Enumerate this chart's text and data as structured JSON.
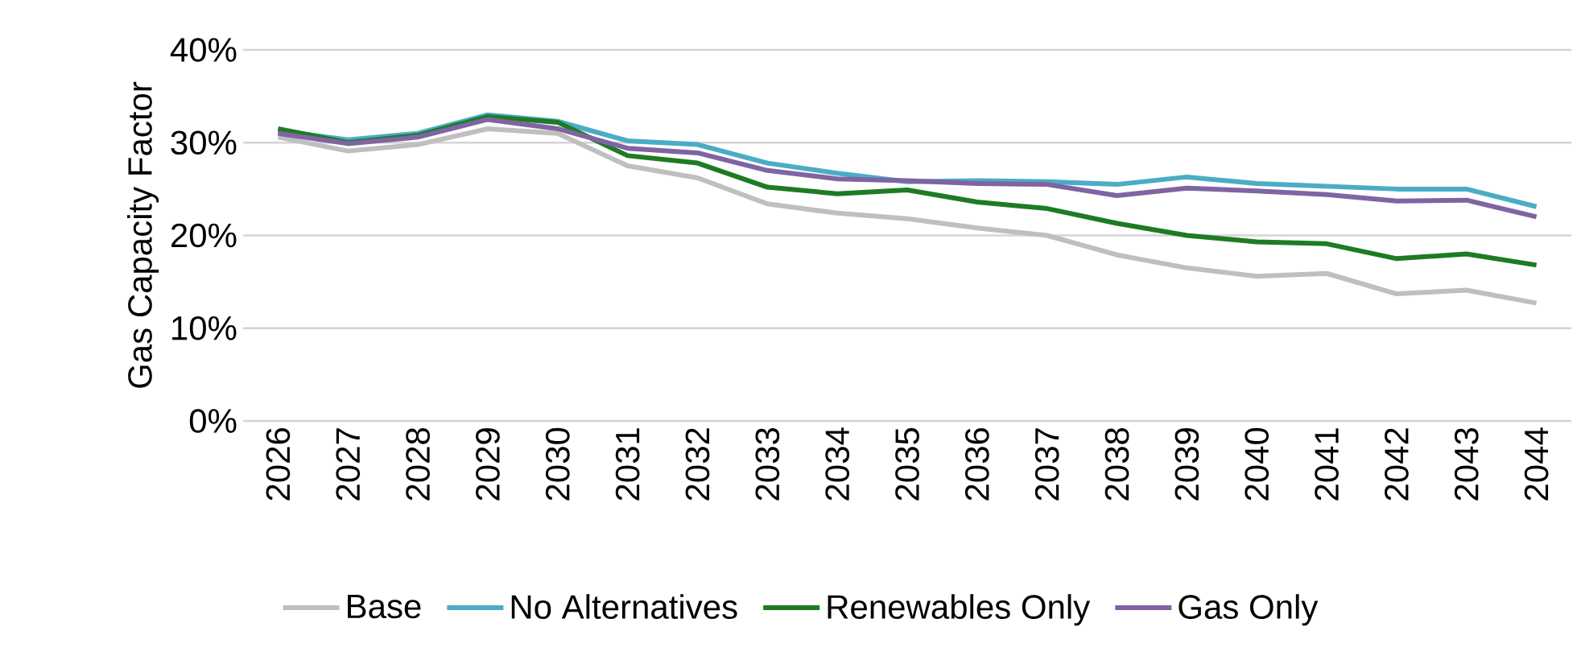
{
  "chart_data": {
    "type": "line",
    "ylabel": "Gas Capacity Factor",
    "categories": [
      "2026",
      "2027",
      "2028",
      "2029",
      "2030",
      "2031",
      "2032",
      "2033",
      "2034",
      "2035",
      "2036",
      "2037",
      "2038",
      "2039",
      "2040",
      "2041",
      "2042",
      "2043",
      "2044"
    ],
    "series": [
      {
        "name": "Base",
        "color": "#bfbfbf",
        "values": [
          30.6,
          29.1,
          29.8,
          31.5,
          31.0,
          27.5,
          26.2,
          23.4,
          22.4,
          21.8,
          20.8,
          20.0,
          17.9,
          16.5,
          15.6,
          15.9,
          13.7,
          14.1,
          12.7
        ]
      },
      {
        "name": "No Alternatives",
        "color": "#4bacc6",
        "values": [
          31.3,
          30.3,
          31.0,
          33.0,
          32.3,
          30.2,
          29.8,
          27.8,
          26.7,
          25.8,
          25.9,
          25.8,
          25.5,
          26.3,
          25.6,
          25.3,
          25.0,
          25.0,
          23.1
        ]
      },
      {
        "name": "Renewables Only",
        "color": "#1e7b24",
        "values": [
          31.5,
          30.0,
          30.8,
          32.8,
          32.2,
          28.6,
          27.8,
          25.2,
          24.5,
          24.9,
          23.6,
          22.9,
          21.3,
          20.0,
          19.3,
          19.1,
          17.5,
          18.0,
          16.8
        ]
      },
      {
        "name": "Gas Only",
        "color": "#8064a2",
        "values": [
          31.0,
          29.9,
          30.6,
          32.5,
          31.5,
          29.4,
          28.9,
          27.0,
          26.1,
          25.9,
          25.6,
          25.5,
          24.3,
          25.1,
          24.8,
          24.4,
          23.7,
          23.8,
          22.0
        ]
      }
    ],
    "ylim": [
      0,
      40
    ],
    "yticks": [
      {
        "value": 0,
        "label": "0%"
      },
      {
        "value": 10,
        "label": "10%"
      },
      {
        "value": 20,
        "label": "20%"
      },
      {
        "value": 30,
        "label": "30%"
      },
      {
        "value": 40,
        "label": "40%"
      }
    ],
    "grid": "y",
    "legend": "bottom",
    "marker": "none",
    "line_style": "solid"
  }
}
